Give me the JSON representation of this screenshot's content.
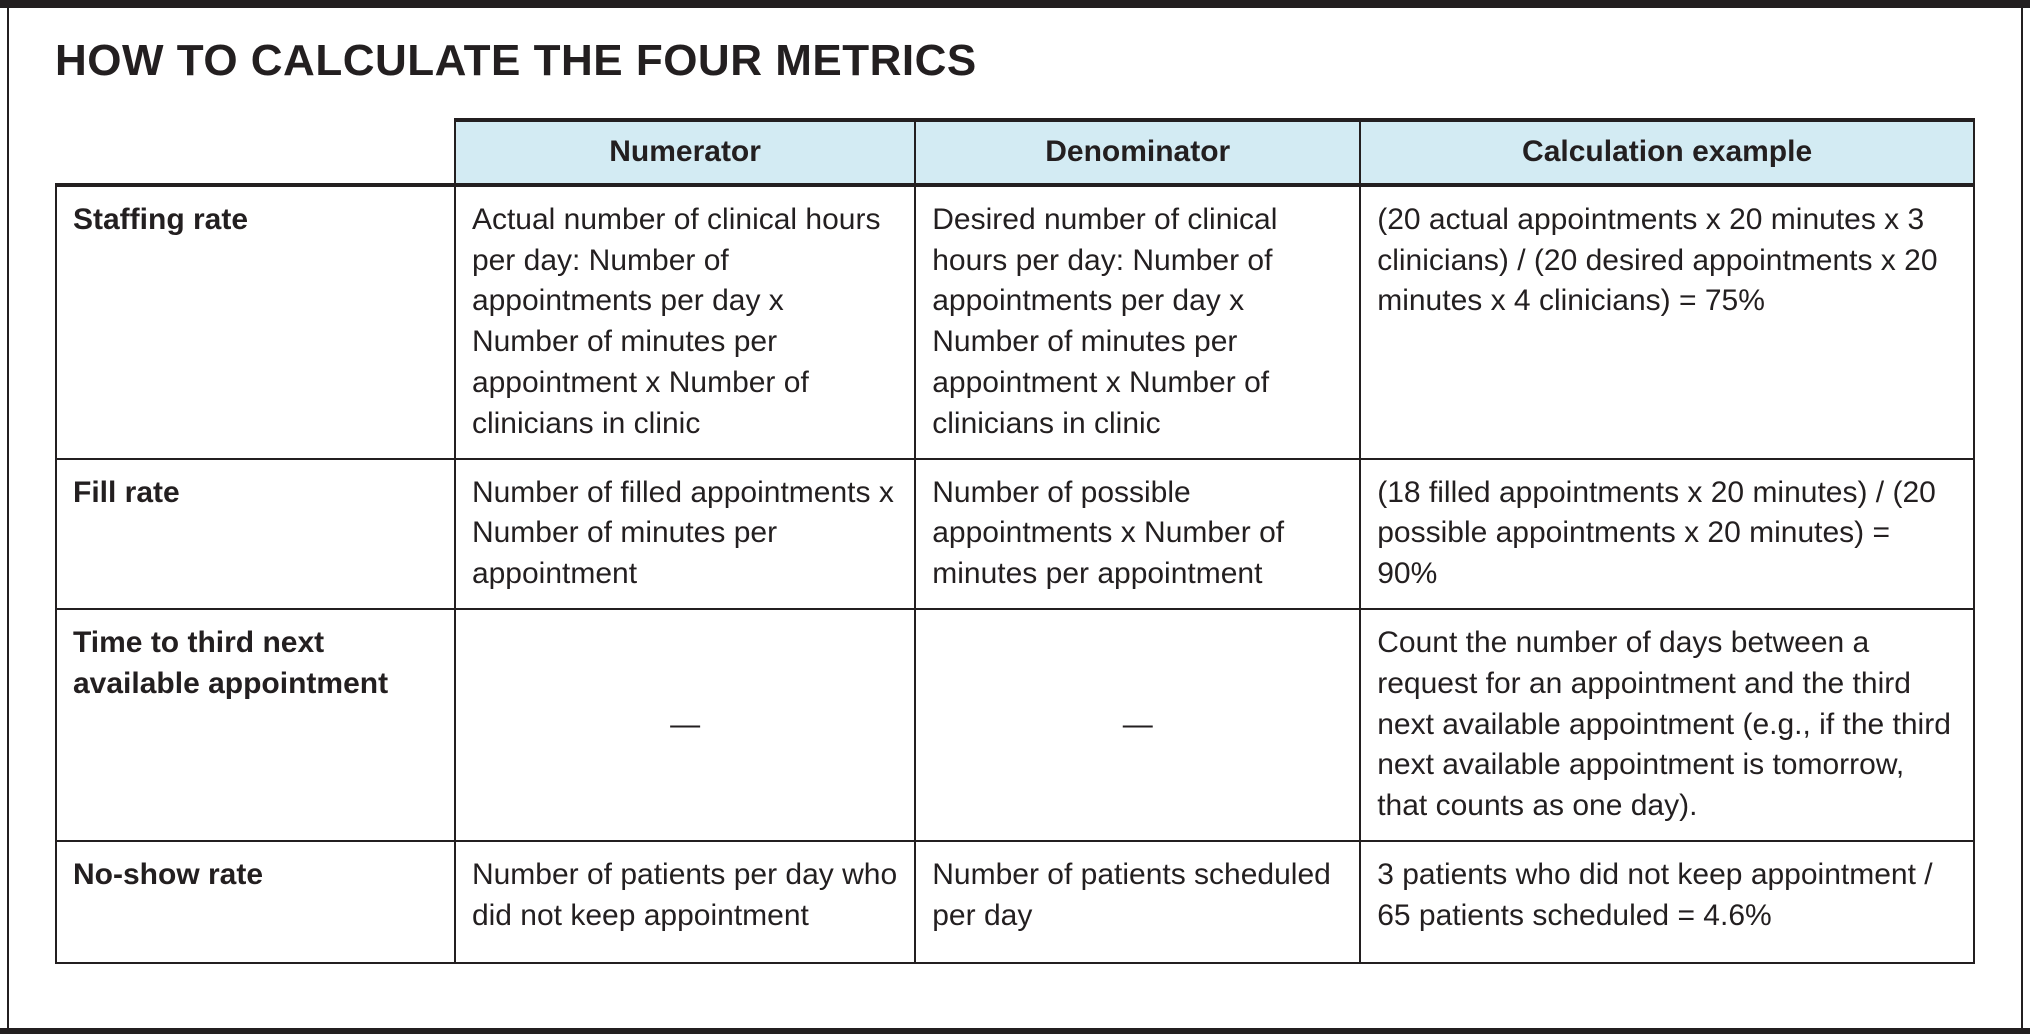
{
  "title": "HOW TO CALCULATE THE FOUR METRICS",
  "table": {
    "columns": [
      "",
      "Numerator",
      "Denominator",
      "Calculation example"
    ],
    "rows": [
      {
        "label": "Staffing rate",
        "numerator": "Actual number of clinical hours per day: Number of appointments per day x Number of minutes per appointment x Number of clinicians in clinic",
        "denominator": "Desired number of clinical hours per day: Number of appointments per day x Number of minutes per appointment x Number of clinicians in clinic",
        "example": "(20 actual appointments x 20 minutes x 3 clinicians) / (20 desired appointments x 20 minutes x 4 clinicians) = 75%"
      },
      {
        "label": "Fill rate",
        "numerator": "Number of filled appointments x Number of minutes per appointment",
        "denominator": "Number of possible appointments x Number of minutes per appointment",
        "example": "(18 filled appointments x 20 minutes) / (20 possible appointments x 20 minutes) = 90%"
      },
      {
        "label": "Time to third next available appointment",
        "numerator": "—",
        "denominator": "—",
        "example": "Count the number of days between a request for an appointment and the third next available appointment (e.g., if the third next available appointment is tomorrow, that counts as one day)."
      },
      {
        "label": "No-show rate",
        "numerator": "Number of patients per day who did not keep appointment",
        "denominator": "Number of patients scheduled per day",
        "example": "3 patients who did not keep appointment / 65 patients scheduled = 4.6%"
      }
    ]
  },
  "colors": {
    "header_bg": "#d3ebf3",
    "ink": "#231f20"
  }
}
